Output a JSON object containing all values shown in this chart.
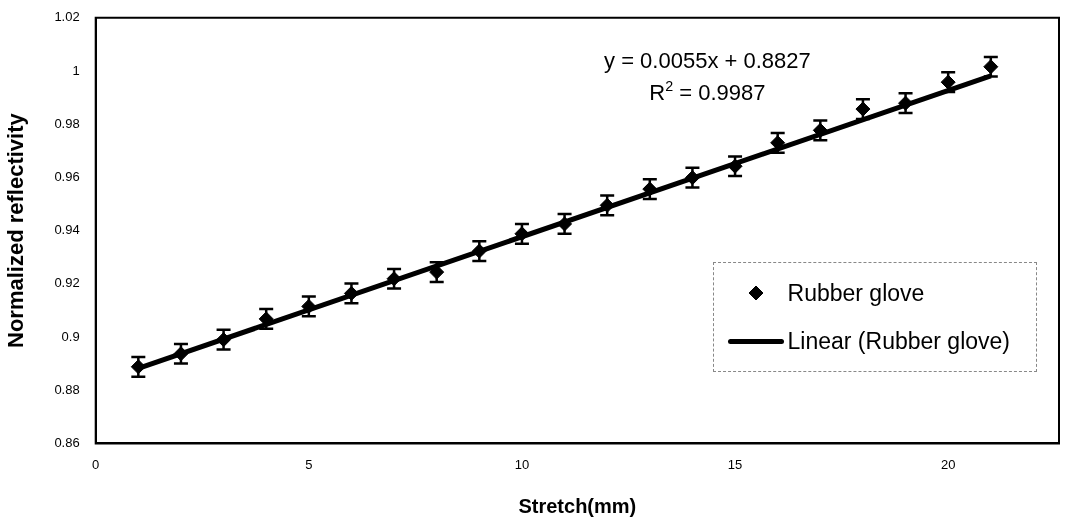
{
  "chart_data": {
    "type": "scatter",
    "xlabel": "Stretch(mm)",
    "ylabel": "Normalized reflectivity",
    "xlim": [
      0,
      22.6
    ],
    "xticks": [
      0,
      5,
      10,
      15,
      20
    ],
    "ylim": [
      0.86,
      1.02
    ],
    "yticks": [
      0.86,
      0.88,
      0.9,
      0.92,
      0.94,
      0.96,
      0.98,
      1,
      1.02
    ],
    "grid": false,
    "legend": "right",
    "annotations": [
      "y = 0.0055x + 0.8827",
      "R$^{2}$ = 0.9987"
    ],
    "series": [
      {
        "name": "Rubber glove",
        "marker": "diamond",
        "color": "#000000",
        "x": [
          1,
          2,
          3,
          4,
          5,
          6,
          7,
          8,
          9,
          10,
          11,
          12,
          13,
          14,
          15,
          16,
          17,
          18,
          19,
          20,
          21
        ],
        "values": [
          0.8888,
          0.8937,
          0.899,
          0.9068,
          0.9115,
          0.9164,
          0.9219,
          0.9244,
          0.9323,
          0.9388,
          0.9425,
          0.9495,
          0.9556,
          0.9599,
          0.9642,
          0.973,
          0.9777,
          0.9857,
          0.9879,
          0.9958,
          1.0016
        ],
        "errors": [
          0.0037,
          0.0037,
          0.0037,
          0.0037,
          0.0037,
          0.0037,
          0.0037,
          0.0037,
          0.0037,
          0.0037,
          0.0037,
          0.0037,
          0.0037,
          0.0037,
          0.0037,
          0.0037,
          0.0037,
          0.0037,
          0.0037,
          0.0037,
          0.0037
        ]
      },
      {
        "name": "Linear (Rubber glove)",
        "type": "line",
        "marker": "none",
        "color": "#000000",
        "x": [
          1,
          21
        ],
        "values": [
          0.8882,
          0.9982
        ]
      }
    ]
  }
}
